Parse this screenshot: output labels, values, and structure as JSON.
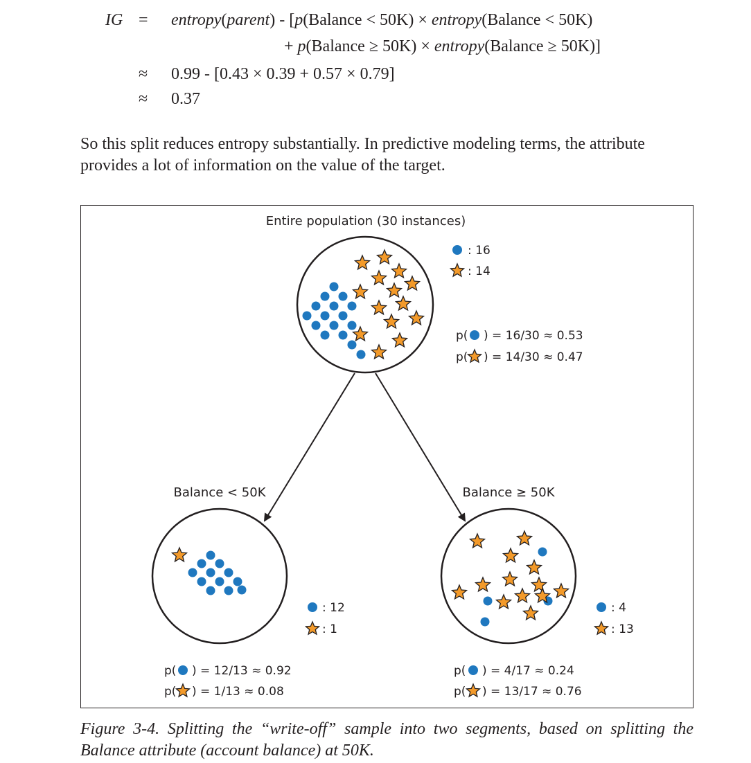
{
  "equation": {
    "lhs": "IG",
    "eq": "=",
    "approx": "≈",
    "line1": {
      "a": "entropy",
      "b": "(",
      "c": "parent",
      "d": ") - [",
      "e": "p",
      "f": "(Balance < 50K) × ",
      "g": "entropy",
      "h": "(Balance < 50K)"
    },
    "line2": {
      "a": "+ ",
      "b": "p",
      "c": "(Balance ≥ 50K) × ",
      "d": "entropy",
      "e": "(Balance ≥ 50K)]"
    },
    "line3": "0.99 - [0.43 × 0.39 + 0.57 × 0.79]",
    "line4": "0.37"
  },
  "paragraph": "So this split reduces entropy substantially. In predictive modeling terms, the attribute provides a lot of information on the value of the target.",
  "figure": {
    "top_title": "Entire population (30 instances)",
    "top_count_dot": ": 16",
    "top_count_star": ": 14",
    "top_p_dot": ") = 16/30 ≈ 0.53",
    "top_p_star": ") = 14/30 ≈ 0.47",
    "p_open": "p(",
    "left_title": "Balance < 50K",
    "left_count_dot": ": 12",
    "left_count_star": ": 1",
    "left_p_dot": ") = 12/13 ≈ 0.92",
    "left_p_star": ") = 1/13 ≈ 0.08",
    "right_title": "Balance ≥ 50K",
    "right_count_dot": ": 4",
    "right_count_star": ": 13",
    "right_p_dot": ") = 4/17 ≈ 0.24",
    "right_p_star": ") = 13/17 ≈ 0.76",
    "colors": {
      "dot": "#1f78bf",
      "star_fill": "#f39a2a",
      "star_stroke": "#231f20"
    }
  },
  "caption": "Figure 3-4. Splitting the “write-off” sample into two segments, based on splitting the Balance attribute (account balance) at 50K."
}
